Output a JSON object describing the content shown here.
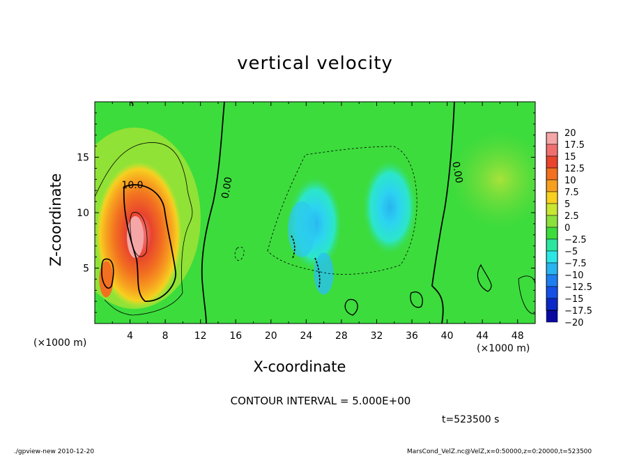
{
  "chart_data": {
    "type": "heatmap",
    "title": "vertical velocity",
    "xlabel": "X-coordinate",
    "ylabel": "Z-coordinate",
    "x_unit": "(×1000 m)",
    "y_unit": "(×1000 m)",
    "xlim": [
      0,
      50
    ],
    "ylim": [
      0,
      20
    ],
    "x_ticks": [
      4,
      8,
      12,
      16,
      20,
      24,
      28,
      32,
      36,
      40,
      44,
      48
    ],
    "y_ticks": [
      5,
      10,
      15
    ],
    "colorbar_levels": [
      "20",
      "17.5",
      "15",
      "12.5",
      "10",
      "7.5",
      "5",
      "2.5",
      "0",
      "−2.5",
      "−5",
      "−7.5",
      "−10",
      "−12.5",
      "−15",
      "−17.5",
      "−20"
    ],
    "contour_labels": [
      "10.0",
      "0.00",
      "0.00"
    ],
    "contour_interval_text": "CONTOUR INTERVAL = 5.000E+00",
    "time_text": "t=523500 s",
    "features": [
      {
        "name": "updraft",
        "x": 5,
        "z": 8,
        "peak": 20
      },
      {
        "name": "downdraft",
        "x": 25,
        "z": 9,
        "peak": -7.5
      },
      {
        "name": "downdraft",
        "x": 33.5,
        "z": 10.5,
        "peak": -7.5
      }
    ],
    "colors": {
      "c20": "#f5a6a6",
      "c175": "#f07070",
      "c15": "#e8442e",
      "c125": "#f27020",
      "c10": "#f7a020",
      "c75": "#f7d020",
      "c5": "#c8e632",
      "c25": "#8ce03c",
      "c0": "#3cdc3c",
      "cm25": "#2ce6a0",
      "cm5": "#2ce6e6",
      "cm75": "#28b4f0",
      "cm10": "#1e7ef0",
      "cm125": "#1450e6",
      "cm15": "#0a28c8",
      "cm175": "#0a0aa0",
      "cm20": "#7a14b4"
    }
  },
  "footer": {
    "left": "./gpview-new  2010-12-20",
    "right": "MarsCond_VelZ.nc@VelZ,x=0:50000,z=0:20000,t=523500"
  }
}
